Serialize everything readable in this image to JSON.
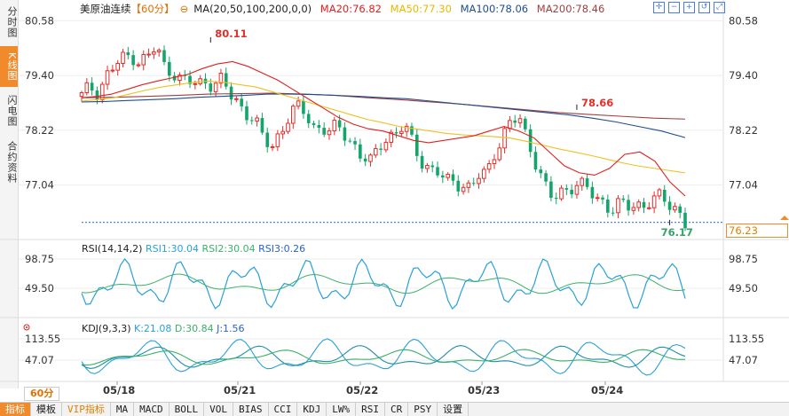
{
  "sidebar": {
    "tabs": [
      {
        "label": "分时图",
        "active": false
      },
      {
        "label": "K线图",
        "active": true
      },
      {
        "label": "闪电图",
        "active": false
      },
      {
        "label": "合约资料",
        "active": false
      }
    ]
  },
  "legend": {
    "instrument": "美原油连续",
    "period": "【60分】",
    "ma_label": "MA(20,50,100,200,0,0)",
    "ma20": "MA20:76.82",
    "ma50": "MA50:77.30",
    "ma100": "MA100:78.06",
    "ma200": "MA200:78.46"
  },
  "colors": {
    "up": "#e0302a",
    "down": "#13a56a",
    "ma20": "#e02020",
    "ma50": "#f0c020",
    "ma100": "#1f4e8c",
    "ma200": "#a04040",
    "rsi1": "#2aa0d8",
    "rsi2": "#3cb06a",
    "rsi3": "#2a62c8",
    "accent": "#f08a2a"
  },
  "price_axis": {
    "ticks": [
      "80.58",
      "79.40",
      "78.22",
      "77.04"
    ]
  },
  "annotations": {
    "high": "80.11",
    "mid_high": "78.66",
    "low": "76.17",
    "current_price": "76.23"
  },
  "rsi": {
    "label": "RSI(14,14,2)",
    "rsi1": "RSI1:30.04",
    "rsi2": "RSI2:30.04",
    "rsi3": "RSI3:0.26",
    "ticks": [
      "98.75",
      "49.50"
    ]
  },
  "kdj": {
    "label": "KDJ(9,3,3)",
    "k": "K:21.08",
    "d": "D:30.84",
    "j": "J:1.56",
    "ticks": [
      "113.55",
      "47.07"
    ]
  },
  "dates": [
    "05/18",
    "05/21",
    "05/22",
    "05/23",
    "05/24"
  ],
  "period_button": "60分",
  "toolbar": {
    "tools": [
      "crosshair-icon",
      "zoom-out-icon",
      "zoom-in-icon",
      "reset-icon",
      "fullscreen-icon"
    ],
    "bottom": [
      {
        "label": "指标",
        "active": true
      },
      {
        "label": "模板"
      },
      {
        "label": "VIP指标",
        "vip": true
      },
      {
        "label": "MA"
      },
      {
        "label": "MACD"
      },
      {
        "label": "BOLL"
      },
      {
        "label": "VOL"
      },
      {
        "label": "BIAS"
      },
      {
        "label": "CCI"
      },
      {
        "label": "KDJ"
      },
      {
        "label": "LW%"
      },
      {
        "label": "RSI"
      },
      {
        "label": "CR"
      },
      {
        "label": "PSY"
      },
      {
        "label": "设置"
      }
    ]
  },
  "chart_data": {
    "type": "candlestick",
    "price_range": [
      75.9,
      80.8
    ],
    "key_points": [
      {
        "index": 25,
        "price": 80.11,
        "label": "high"
      },
      {
        "index": 96,
        "price": 78.66,
        "label": "local-high"
      },
      {
        "index": 114,
        "price": 76.17,
        "label": "low"
      }
    ],
    "close_path": [
      78.95,
      79.15,
      79.05,
      79.4,
      79.6,
      79.75,
      79.85,
      79.7,
      79.8,
      80.0,
      79.6,
      79.5,
      79.3,
      79.25,
      79.2,
      79.3,
      79.2,
      79.3,
      78.95,
      78.8,
      78.6,
      78.4,
      78.0,
      77.85,
      78.2,
      78.5,
      78.7,
      78.6,
      78.3,
      78.3,
      78.15,
      78.3,
      78.1,
      77.9,
      77.6,
      77.5,
      77.9,
      78.1,
      78.15,
      78.3,
      77.95,
      77.6,
      77.4,
      77.3,
      77.1,
      77.15,
      77.05,
      76.95,
      77.2,
      77.3,
      77.8,
      78.1,
      78.4,
      78.45,
      78.0,
      77.5,
      77.0,
      76.7,
      76.9,
      77.0,
      77.05,
      76.95,
      76.8,
      76.7,
      76.5,
      76.6,
      76.55,
      76.65,
      76.6,
      76.7,
      76.75,
      76.65,
      76.55,
      76.2
    ],
    "ma20": [
      78.92,
      78.95,
      79.0,
      79.1,
      79.2,
      79.28,
      79.35,
      79.42,
      79.55,
      79.65,
      79.7,
      79.6,
      79.45,
      79.3,
      79.1,
      78.9,
      78.7,
      78.5,
      78.35,
      78.25,
      78.2,
      78.1,
      78.0,
      77.95,
      78.0,
      78.05,
      78.1,
      78.2,
      78.3,
      78.2,
      78.05,
      77.75,
      77.45,
      77.3,
      77.25,
      77.4,
      77.7,
      77.75,
      77.55,
      77.1,
      76.8
    ],
    "ma50": [
      78.85,
      78.88,
      78.92,
      79.0,
      79.08,
      79.15,
      79.2,
      79.25,
      79.28,
      79.25,
      79.2,
      79.15,
      79.05,
      78.95,
      78.85,
      78.75,
      78.65,
      78.55,
      78.45,
      78.38,
      78.3,
      78.25,
      78.2,
      78.15,
      78.12,
      78.1,
      78.08,
      78.05,
      77.98,
      77.9,
      77.82,
      77.75,
      77.68,
      77.6,
      77.52,
      77.45,
      77.4,
      77.35,
      77.3
    ],
    "ma100": [
      78.83,
      78.84,
      78.86,
      78.88,
      78.9,
      78.93,
      78.95,
      78.97,
      79.0,
      79.0,
      78.99,
      78.97,
      78.95,
      78.92,
      78.9,
      78.85,
      78.8,
      78.75,
      78.7,
      78.65,
      78.6,
      78.55,
      78.48,
      78.4,
      78.3,
      78.2,
      78.06
    ],
    "ma200": [
      78.92,
      78.93,
      78.95,
      78.97,
      79.0,
      79.01,
      79.02,
      79.0,
      78.97,
      78.92,
      78.88,
      78.83,
      78.78,
      78.72,
      78.66,
      78.6,
      78.56,
      78.52,
      78.48,
      78.46
    ]
  }
}
